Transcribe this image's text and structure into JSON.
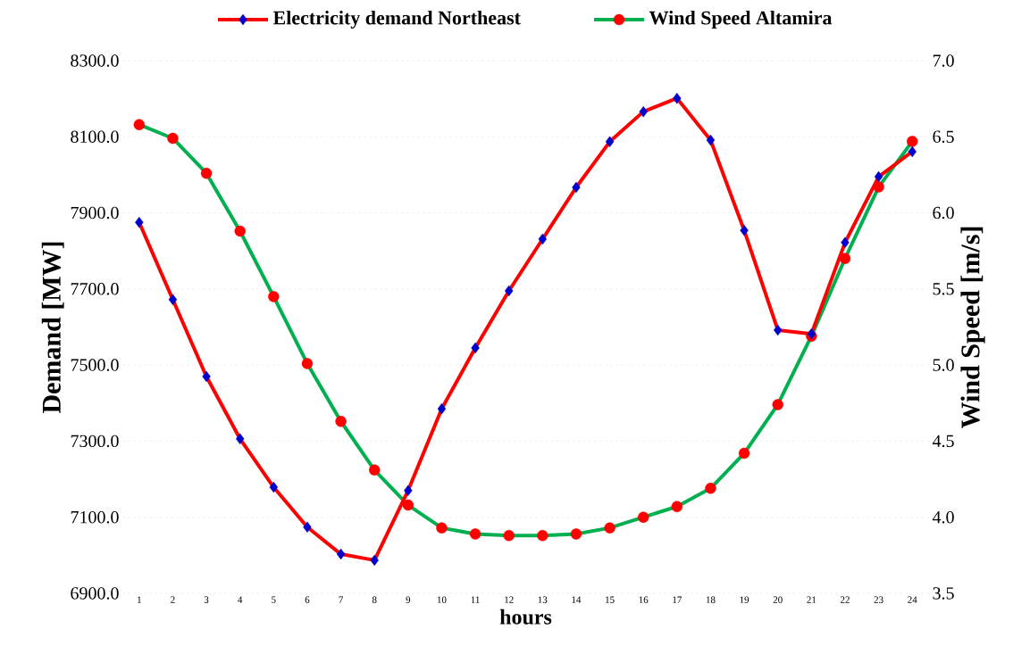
{
  "chart_data": {
    "type": "line",
    "xlabel": "hours",
    "ylabel": "Demand [MW]",
    "y2label": "Wind Speed [m/s]",
    "categories": [
      "1",
      "2",
      "3",
      "4",
      "5",
      "6",
      "7",
      "8",
      "9",
      "10",
      "11",
      "12",
      "13",
      "14",
      "15",
      "16",
      "17",
      "18",
      "19",
      "20",
      "21",
      "22",
      "23",
      "24"
    ],
    "series": [
      {
        "name": "Electricity demand Northeast",
        "color": "#ff0000",
        "marker": "diamond",
        "colors": [
          "#0000cc",
          "#0000cc",
          "#0000cc",
          "#0000cc",
          "#0000cc",
          "#0000cc",
          "#0000cc",
          "#0000cc",
          "#0000cc",
          "#0000cc",
          "#0000cc",
          "#0000cc",
          "#0000cc",
          "#0000cc",
          "#0000cc",
          "#0000cc",
          "#0000cc",
          "#0000cc",
          "#0000cc",
          "#0000cc",
          "#0000cc",
          "#0000cc",
          "#0000cc",
          "#0000cc"
        ],
        "values": [
          7875,
          7672,
          7470,
          7306,
          7179,
          7074,
          7003,
          6987,
          7170,
          7385,
          7545,
          7695,
          7831,
          7967,
          8087,
          8166,
          8201,
          8091,
          7854,
          7592,
          7582,
          7822,
          7995,
          8061
        ]
      },
      {
        "name": "Wind Speed Altamira",
        "color": "#00b050",
        "marker": "circle",
        "axis": "y2",
        "colors": [
          "#ff0000",
          "#ff0000",
          "#ff0000",
          "#ff0000",
          "#ff0000",
          "#ff0000",
          "#ff0000",
          "#ff0000",
          "#ff0000",
          "#ff0000",
          "#ff0000",
          "#ff0000",
          "#ff0000",
          "#ff0000",
          "#ff0000",
          "#ff0000",
          "#ff0000",
          "#ff0000",
          "#ff0000",
          "#ff0000",
          "#ff0000",
          "#ff0000",
          "#ff0000",
          "#ff0000"
        ],
        "values": [
          6.58,
          6.49,
          6.26,
          5.88,
          5.45,
          5.01,
          4.63,
          4.31,
          4.08,
          3.93,
          3.89,
          3.88,
          3.88,
          3.89,
          3.93,
          4.0,
          4.07,
          4.19,
          4.42,
          4.74,
          5.19,
          5.7,
          6.17,
          6.47
        ]
      }
    ],
    "ylim": [
      6900,
      8300
    ],
    "yticks": [
      {
        "value": 6900,
        "label": "6900.0"
      },
      {
        "value": 7100,
        "label": "7100.0"
      },
      {
        "value": 7300,
        "label": "7300.0"
      },
      {
        "value": 7500,
        "label": "7500.0"
      },
      {
        "value": 7700,
        "label": "7700.0"
      },
      {
        "value": 7900,
        "label": "7900.0"
      },
      {
        "value": 8100,
        "label": "8100.0"
      },
      {
        "value": 8300,
        "label": "8300.0"
      }
    ],
    "y2lim": [
      3.5,
      7.0
    ],
    "y2ticks": [
      3.5,
      {
        "value": 4,
        "label": "4.0"
      },
      4.5,
      {
        "value": 5,
        "label": "5.0"
      },
      5.5,
      {
        "value": 6,
        "label": "6.0"
      },
      6.5,
      {
        "value": 7,
        "label": "7.0"
      }
    ],
    "grid": true,
    "legend": "top",
    "line_style": "solid"
  }
}
